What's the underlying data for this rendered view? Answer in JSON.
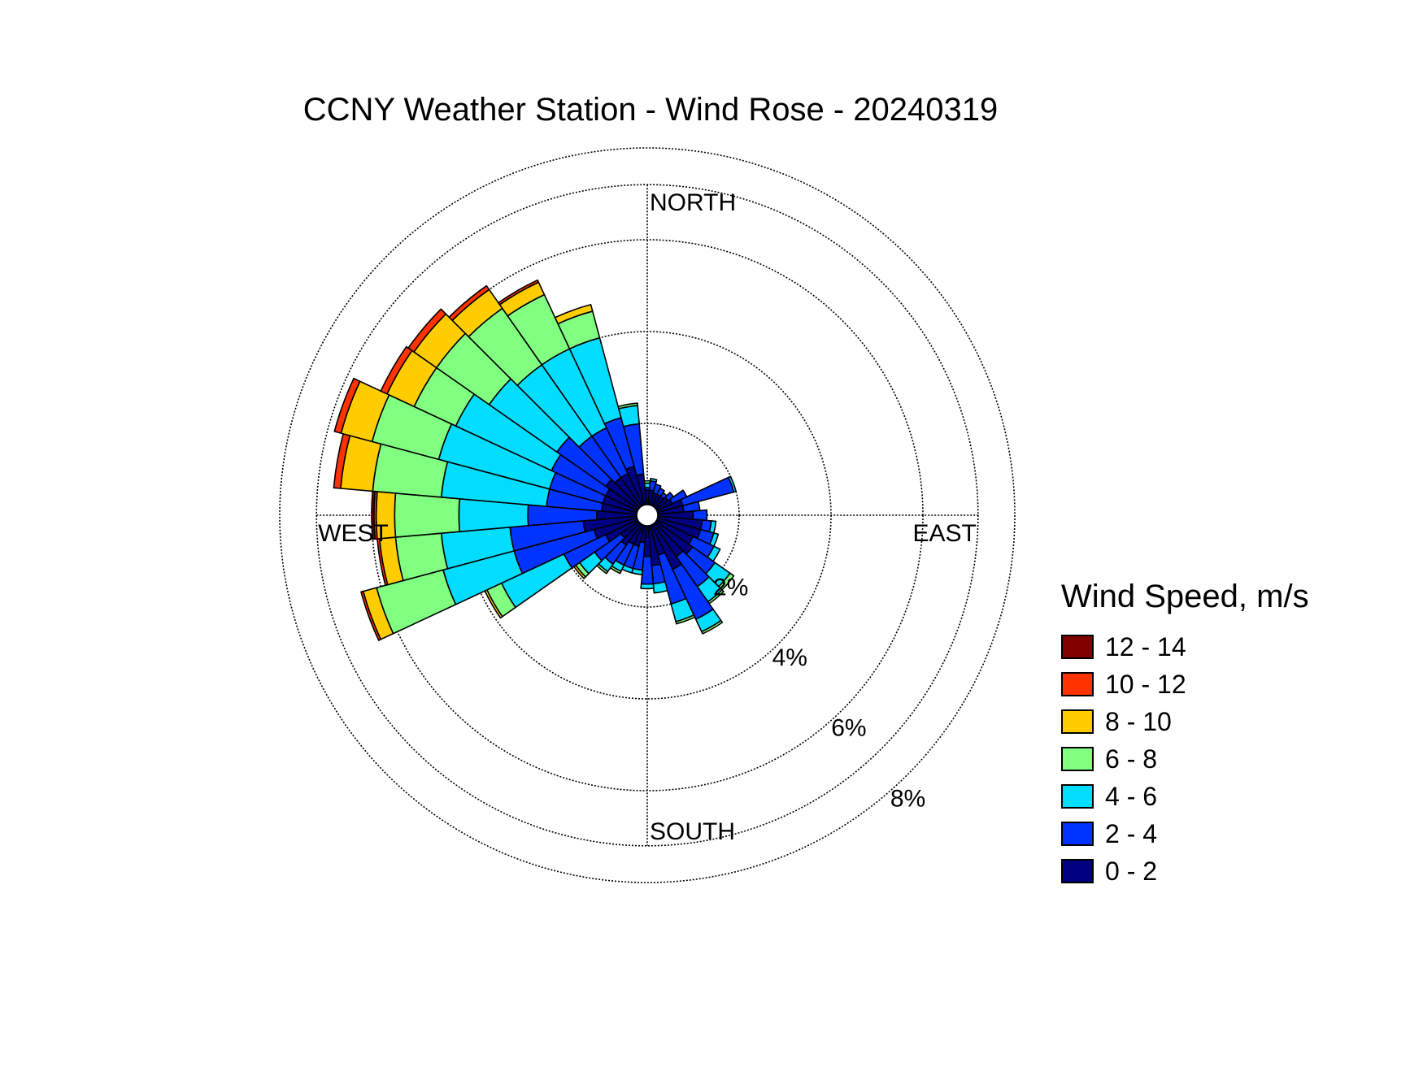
{
  "chart_data": {
    "type": "wind-rose",
    "title": "CCNY Weather Station - Wind Rose - 20240319",
    "directions": {
      "north": "NORTH",
      "south": "SOUTH",
      "east": "EAST",
      "west": "WEST"
    },
    "radial_axis": {
      "unit": "%",
      "rings": [
        2,
        4,
        6,
        8
      ],
      "ring_labels": [
        "2%",
        "4%",
        "6%",
        "8%"
      ],
      "max": 7.2
    },
    "legend": {
      "title": "Wind Speed, m/s",
      "bins": [
        {
          "label": "12 - 14",
          "color": "#800000"
        },
        {
          "label": "10 - 12",
          "color": "#ff3300"
        },
        {
          "label": "8 - 10",
          "color": "#ffcc00"
        },
        {
          "label": "6 - 8",
          "color": "#80ff80"
        },
        {
          "label": "4 - 6",
          "color": "#00ddff"
        },
        {
          "label": "2 - 4",
          "color": "#0033ff"
        },
        {
          "label": "0 - 2",
          "color": "#000080"
        }
      ]
    },
    "bin_order": [
      "0 - 2",
      "2 - 4",
      "4 - 6",
      "6 - 8",
      "8 - 10",
      "10 - 12",
      "12 - 14"
    ],
    "sector_width_deg": 10,
    "sectors": [
      {
        "dir": 0,
        "cum": [
          0.55,
          0.6,
          0.7,
          0.75
        ]
      },
      {
        "dir": 10,
        "cum": [
          0.55,
          0.75,
          0.8
        ]
      },
      {
        "dir": 20,
        "cum": [
          0.5,
          0.7
        ]
      },
      {
        "dir": 30,
        "cum": [
          0.5,
          0.65
        ]
      },
      {
        "dir": 40,
        "cum": [
          0.5,
          0.6
        ]
      },
      {
        "dir": 50,
        "cum": [
          0.55,
          0.7
        ]
      },
      {
        "dir": 60,
        "cum": [
          0.6,
          0.95
        ]
      },
      {
        "dir": 70,
        "cum": [
          0.8,
          1.95,
          2.0
        ]
      },
      {
        "dir": 80,
        "cum": [
          0.8,
          1.15
        ]
      },
      {
        "dir": 90,
        "cum": [
          1.0,
          1.3
        ]
      },
      {
        "dir": 100,
        "cum": [
          1.2,
          1.4,
          1.5
        ]
      },
      {
        "dir": 110,
        "cum": [
          1.2,
          1.5,
          1.6
        ]
      },
      {
        "dir": 120,
        "cum": [
          1.1,
          1.6,
          1.75
        ]
      },
      {
        "dir": 130,
        "cum": [
          1.2,
          1.8,
          2.2,
          2.3
        ]
      },
      {
        "dir": 140,
        "cum": [
          1.1,
          1.9,
          2.3,
          2.35
        ]
      },
      {
        "dir": 150,
        "cum": [
          1.3,
          2.5,
          2.8,
          2.85
        ]
      },
      {
        "dir": 160,
        "cum": [
          0.9,
          2.0,
          2.4,
          2.45
        ]
      },
      {
        "dir": 170,
        "cum": [
          1.1,
          1.5,
          1.7
        ]
      },
      {
        "dir": 180,
        "cum": [
          0.9,
          1.5,
          1.6
        ]
      },
      {
        "dir": 190,
        "cum": [
          0.6,
          1.2,
          1.3
        ]
      },
      {
        "dir": 200,
        "cum": [
          0.7,
          1.2,
          1.3
        ]
      },
      {
        "dir": 210,
        "cum": [
          0.7,
          1.2,
          1.35,
          1.4
        ]
      },
      {
        "dir": 220,
        "cum": [
          0.8,
          1.3,
          1.5,
          1.55
        ]
      },
      {
        "dir": 230,
        "cum": [
          0.7,
          1.4,
          1.8,
          1.9,
          1.95
        ]
      },
      {
        "dir": 240,
        "cum": [
          1.0,
          2.0,
          3.5,
          3.85,
          3.9
        ]
      },
      {
        "dir": 250,
        "cum": [
          1.2,
          3.0,
          4.6,
          6.1,
          6.4,
          6.45
        ]
      },
      {
        "dir": 260,
        "cum": [
          1.4,
          3.0,
          4.5,
          5.5,
          5.85,
          5.9
        ]
      },
      {
        "dir": 270,
        "cum": [
          1.1,
          2.6,
          4.1,
          5.5,
          5.9,
          5.95,
          6.0
        ]
      },
      {
        "dir": 280,
        "cum": [
          1.0,
          2.2,
          4.5,
          6.0,
          6.7,
          6.85
        ]
      },
      {
        "dir": 290,
        "cum": [
          1.0,
          2.2,
          4.7,
          6.2,
          6.9,
          7.05
        ]
      },
      {
        "dir": 300,
        "cum": [
          1.0,
          2.3,
          4.6,
          5.6,
          6.25,
          6.4
        ]
      },
      {
        "dir": 310,
        "cum": [
          1.1,
          2.4,
          4.2,
          5.6,
          6.2,
          6.35
        ]
      },
      {
        "dir": 320,
        "cum": [
          1.0,
          2.1,
          4.0,
          5.5,
          6.0,
          6.1
        ]
      },
      {
        "dir": 330,
        "cum": [
          1.0,
          2.1,
          4.0,
          5.3,
          5.6,
          5.65
        ]
      },
      {
        "dir": 340,
        "cum": [
          1.1,
          2.2,
          4.0,
          4.6,
          4.75
        ]
      },
      {
        "dir": 350,
        "cum": [
          0.9,
          2.0,
          2.4,
          2.45
        ]
      }
    ]
  }
}
